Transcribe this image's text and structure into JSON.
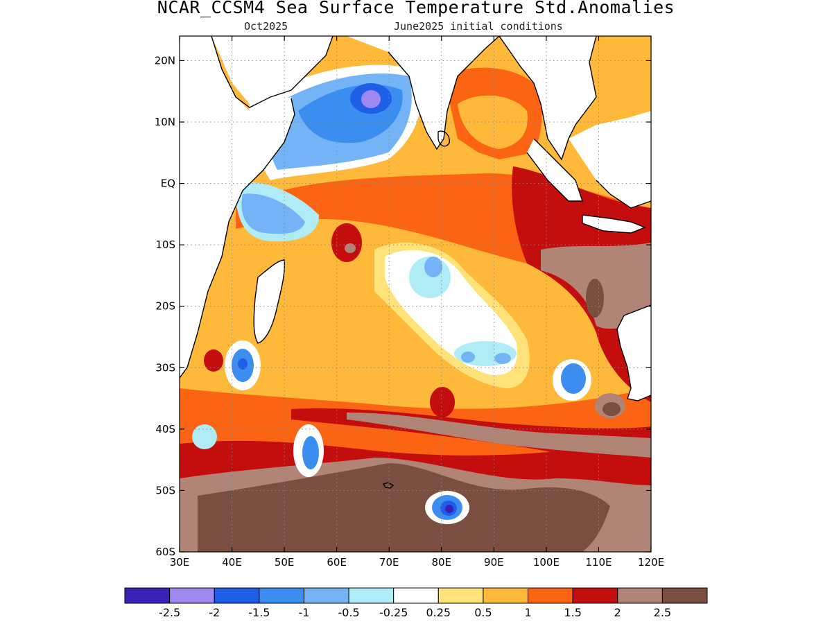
{
  "header": {
    "title": "NCAR_CCSM4 Sea Surface Temperature Std.Anomalies",
    "valid_month": "Oct2025",
    "init": "June2025 initial conditions"
  },
  "map": {
    "lon_range": [
      30,
      120
    ],
    "lat_range": [
      -60,
      24
    ],
    "x_ticks": [
      {
        "lon": 30,
        "label": "30E"
      },
      {
        "lon": 40,
        "label": "40E"
      },
      {
        "lon": 50,
        "label": "50E"
      },
      {
        "lon": 60,
        "label": "60E"
      },
      {
        "lon": 70,
        "label": "70E"
      },
      {
        "lon": 80,
        "label": "80E"
      },
      {
        "lon": 90,
        "label": "90E"
      },
      {
        "lon": 100,
        "label": "100E"
      },
      {
        "lon": 110,
        "label": "110E"
      },
      {
        "lon": 120,
        "label": "120E"
      }
    ],
    "y_ticks": [
      {
        "lat": 20,
        "label": "20N"
      },
      {
        "lat": 10,
        "label": "10N"
      },
      {
        "lat": 0,
        "label": "EQ"
      },
      {
        "lat": -10,
        "label": "10S"
      },
      {
        "lat": -20,
        "label": "20S"
      },
      {
        "lat": -30,
        "label": "30S"
      },
      {
        "lat": -40,
        "label": "40S"
      },
      {
        "lat": -50,
        "label": "50S"
      },
      {
        "lat": -60,
        "label": "60S"
      }
    ]
  },
  "colorbar": {
    "colors": [
      "#3a22b8",
      "#9f88f0",
      "#1f5fe8",
      "#3b8ef0",
      "#74b4f6",
      "#b0ecf6",
      "#ffffff",
      "#ffe37a",
      "#ffb93a",
      "#fb6412",
      "#c40d0d",
      "#b08578",
      "#7a4e40"
    ],
    "labels": [
      "-2.5",
      "-2",
      "-1.5",
      "-1",
      "-0.5",
      "-0.25",
      "0.25",
      "0.5",
      "1",
      "1.5",
      "2",
      "2.5"
    ]
  }
}
